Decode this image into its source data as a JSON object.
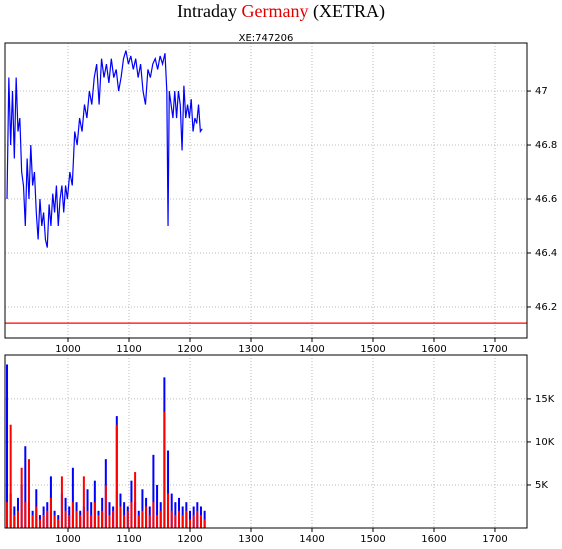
{
  "header": {
    "prefix": "Intraday",
    "highlight": "Germany",
    "suffix": "(XETRA)"
  },
  "chart_data": [
    {
      "type": "line",
      "subtitle": "XE:747206",
      "y_axis_side": "right",
      "grid": true,
      "xlim": [
        896.7,
        1752.5
      ],
      "xticks": [
        1000,
        1100,
        1200,
        1300,
        1400,
        1500,
        1600,
        1700
      ],
      "ylim": [
        46.085,
        47.178
      ],
      "yticks": [
        46.2,
        46.4,
        46.6,
        46.8,
        47
      ],
      "hline": {
        "value": 46.14,
        "color": "#ff0000"
      },
      "x": [
        900,
        903,
        906,
        909,
        912,
        915,
        918,
        921,
        924,
        927,
        930,
        933,
        936,
        939,
        942,
        945,
        948,
        951,
        954,
        957,
        960,
        963,
        966,
        969,
        972,
        975,
        978,
        981,
        984,
        987,
        990,
        993,
        996,
        999,
        1003,
        1007,
        1011,
        1015,
        1019,
        1023,
        1027,
        1031,
        1035,
        1039,
        1043,
        1047,
        1051,
        1055,
        1059,
        1063,
        1067,
        1071,
        1075,
        1079,
        1083,
        1087,
        1091,
        1095,
        1099,
        1103,
        1107,
        1111,
        1115,
        1119,
        1123,
        1127,
        1131,
        1135,
        1139,
        1143,
        1147,
        1151,
        1155,
        1159,
        1162,
        1164,
        1166,
        1169,
        1172,
        1175,
        1178,
        1181,
        1184,
        1187,
        1190,
        1193,
        1196,
        1199,
        1202,
        1205,
        1208,
        1211,
        1214,
        1217,
        1220
      ],
      "series": [
        {
          "color": "#0000ff",
          "values": [
            46.6,
            47.05,
            46.8,
            47.0,
            46.75,
            47.05,
            46.85,
            46.9,
            46.7,
            46.65,
            46.5,
            46.75,
            46.6,
            46.8,
            46.65,
            46.7,
            46.55,
            46.45,
            46.6,
            46.5,
            46.55,
            46.45,
            46.42,
            46.58,
            46.5,
            46.62,
            46.55,
            46.65,
            46.5,
            46.6,
            46.65,
            46.55,
            46.65,
            46.6,
            46.7,
            46.65,
            46.85,
            46.8,
            46.9,
            46.85,
            46.95,
            46.9,
            47.0,
            46.95,
            47.05,
            47.1,
            46.95,
            47.12,
            47.05,
            47.1,
            47.03,
            47.12,
            47.05,
            47.08,
            47.0,
            47.05,
            47.12,
            47.15,
            47.1,
            47.13,
            47.08,
            47.12,
            47.05,
            47.1,
            47.0,
            46.95,
            47.08,
            47.05,
            47.1,
            47.12,
            47.08,
            47.13,
            47.1,
            47.14,
            47.0,
            46.5,
            47.0,
            46.95,
            46.9,
            47.0,
            46.9,
            47.0,
            46.95,
            46.78,
            47.02,
            46.9,
            46.95,
            46.9,
            46.97,
            46.85,
            46.9,
            46.88,
            46.95,
            46.85,
            46.86
          ]
        }
      ]
    },
    {
      "type": "bar",
      "y_axis_side": "right",
      "grid": true,
      "xlim": [
        896.7,
        1752.5
      ],
      "xticks": [
        1000,
        1100,
        1200,
        1300,
        1400,
        1500,
        1600,
        1700
      ],
      "ylim": [
        0,
        20100
      ],
      "yticks": [
        {
          "value": 5000,
          "label": "5K"
        },
        {
          "value": 10000,
          "label": "10K"
        },
        {
          "value": 15000,
          "label": "15K"
        }
      ],
      "x": [
        900,
        906,
        912,
        918,
        924,
        930,
        936,
        942,
        948,
        954,
        960,
        966,
        972,
        978,
        984,
        990,
        996,
        1002,
        1008,
        1014,
        1020,
        1026,
        1032,
        1038,
        1044,
        1050,
        1056,
        1062,
        1068,
        1074,
        1080,
        1086,
        1092,
        1098,
        1104,
        1110,
        1116,
        1122,
        1128,
        1134,
        1140,
        1146,
        1152,
        1158,
        1164,
        1170,
        1176,
        1182,
        1188,
        1194,
        1200,
        1206,
        1212,
        1218,
        1224
      ],
      "series": [
        {
          "color": "#0000ff",
          "values": [
            19000,
            4000,
            2500,
            3500,
            5000,
            9500,
            3000,
            2000,
            4500,
            1500,
            2500,
            3000,
            6000,
            2000,
            1500,
            4000,
            3500,
            2500,
            7000,
            3000,
            2000,
            2500,
            4500,
            3000,
            5500,
            2000,
            3500,
            8000,
            3000,
            2500,
            13000,
            4000,
            3000,
            2500,
            5500,
            3000,
            2000,
            4500,
            3500,
            2500,
            8500,
            5000,
            3000,
            17500,
            9000,
            4000,
            3000,
            3500,
            2500,
            3000,
            2000,
            2500,
            3000,
            2500,
            2000
          ]
        },
        {
          "color": "#ff0000",
          "values": [
            3000,
            12000,
            1500,
            2000,
            7000,
            3000,
            8000,
            1500,
            2500,
            1000,
            1500,
            2000,
            3500,
            1500,
            1000,
            6000,
            2000,
            1500,
            3000,
            2000,
            1500,
            6000,
            2000,
            1500,
            3000,
            1500,
            2000,
            5000,
            1500,
            2000,
            12000,
            2500,
            1500,
            2000,
            3000,
            6500,
            1500,
            2000,
            2500,
            1500,
            3000,
            1500,
            2000,
            13500,
            4000,
            2000,
            1500,
            2000,
            1500,
            2000,
            1000,
            1500,
            2000,
            1500,
            1000
          ]
        }
      ]
    }
  ]
}
